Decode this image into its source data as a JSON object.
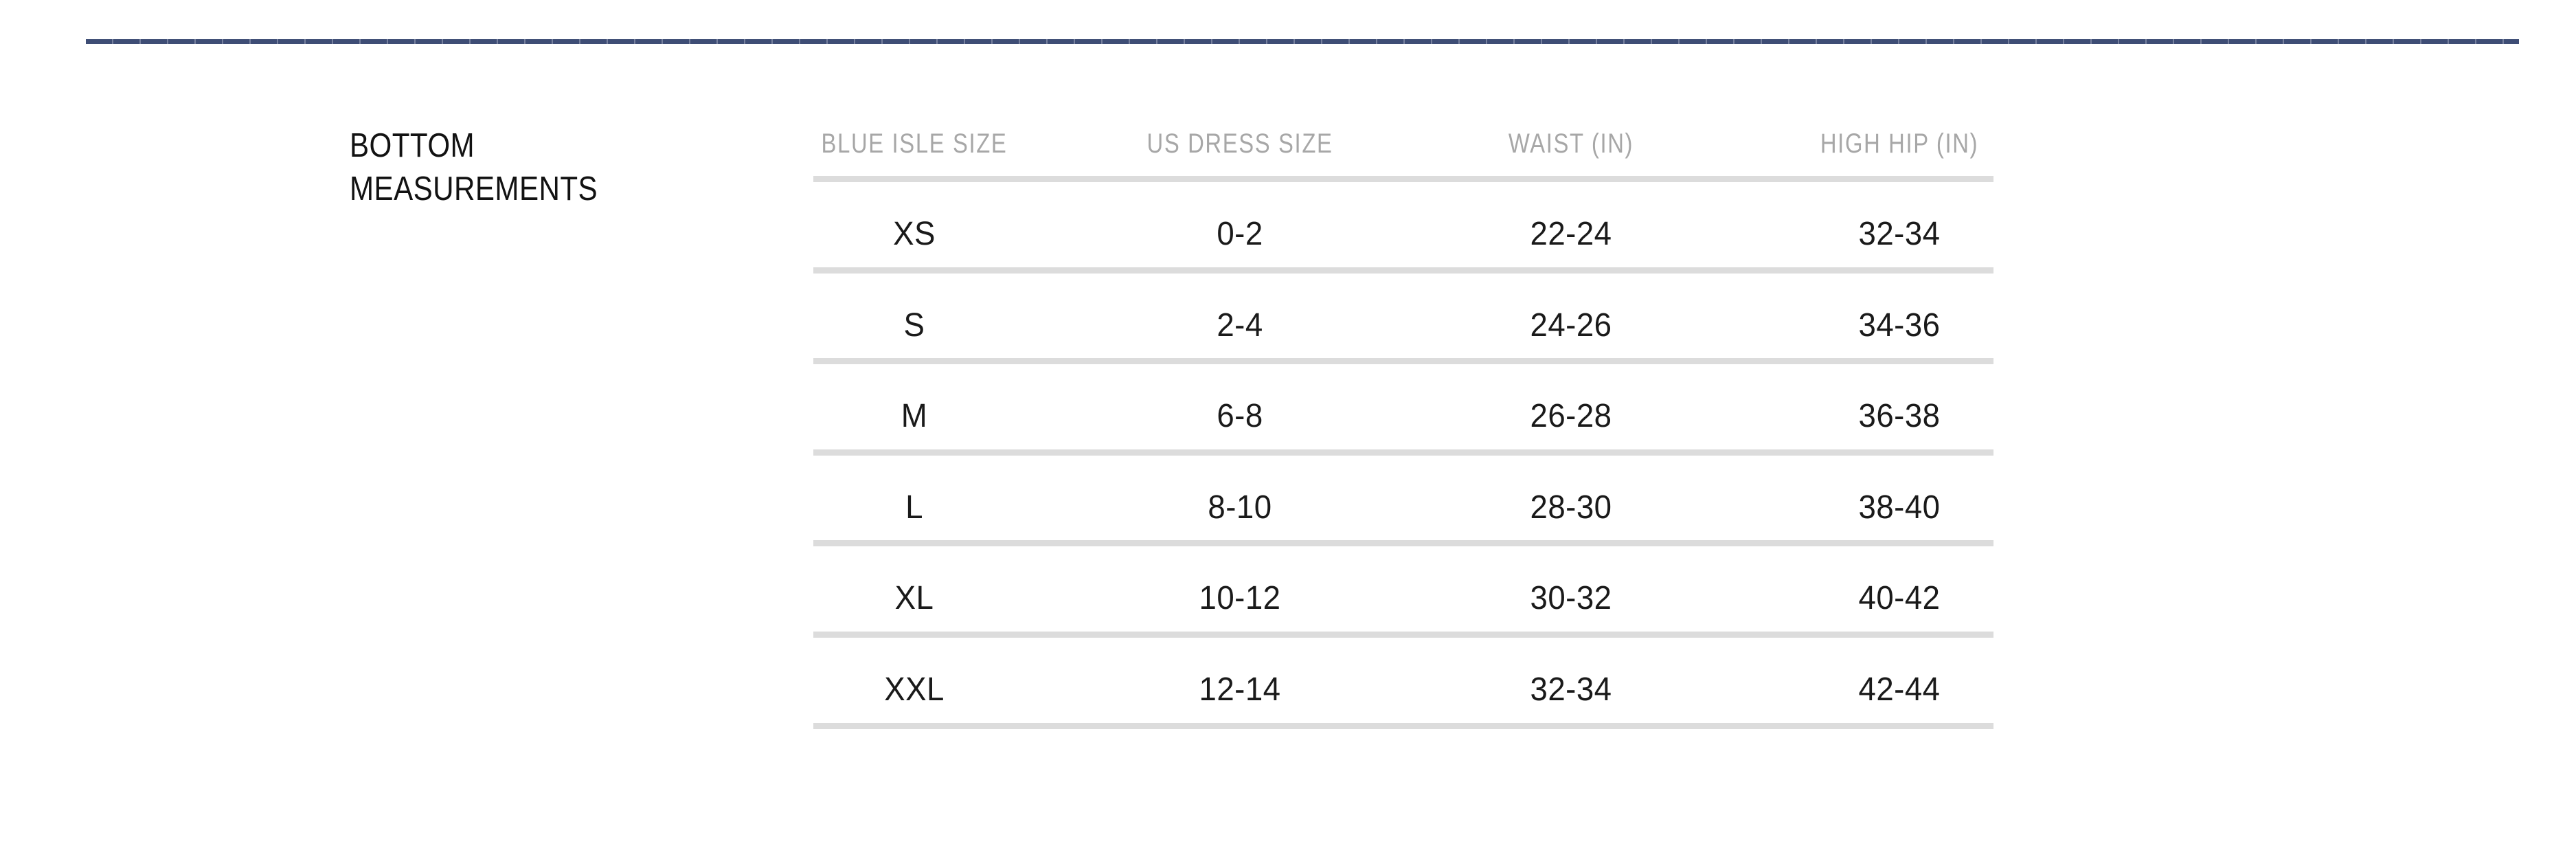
{
  "section": {
    "title_line1": "BOTTOM",
    "title_line2": "MEASUREMENTS"
  },
  "table": {
    "columns": [
      "BLUE ISLE SIZE",
      "US DRESS SIZE",
      "WAIST (IN)",
      "HIGH HIP (IN)"
    ],
    "rows": [
      [
        "XS",
        "0-2",
        "22-24",
        "32-34"
      ],
      [
        "S",
        "2-4",
        "24-26",
        "34-36"
      ],
      [
        "M",
        "6-8",
        "26-28",
        "36-38"
      ],
      [
        "L",
        "8-10",
        "28-30",
        "38-40"
      ],
      [
        "XL",
        "10-12",
        "30-32",
        "40-42"
      ],
      [
        "XXL",
        "12-14",
        "32-34",
        "42-44"
      ]
    ]
  },
  "colors": {
    "top_rule": "#3e4d75",
    "row_divider": "#dcdcdc",
    "header_text": "#a7a7a7",
    "body_text": "#1a1a1a"
  }
}
